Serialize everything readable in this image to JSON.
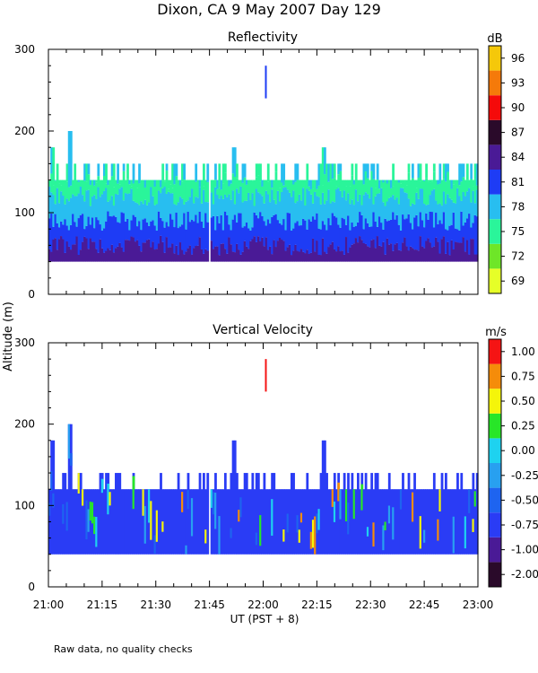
{
  "title": "Dixon, CA  9 May 2007  Day 129",
  "ylabel": "Altitude (m)",
  "xlabel": "UT  (PST + 8)",
  "footnote": "Raw data, no quality checks",
  "x_ticks": [
    "21:00",
    "21:15",
    "21:30",
    "21:45",
    "22:00",
    "22:15",
    "22:30",
    "22:45",
    "23:00"
  ],
  "chart_data": [
    {
      "type": "heatmap",
      "title": "Reflectivity",
      "colorbar_unit": "dB",
      "xlim": [
        "21:00",
        "23:00"
      ],
      "ylim": [
        0,
        300
      ],
      "y_ticks": [
        0,
        100,
        200,
        300
      ],
      "colorbar_levels": [
        {
          "label": "69",
          "color": "#e6ff28"
        },
        {
          "label": "72",
          "color": "#6ee628"
        },
        {
          "label": "75",
          "color": "#2af59a"
        },
        {
          "label": "78",
          "color": "#28bef0"
        },
        {
          "label": "81",
          "color": "#1e3cf5"
        },
        {
          "label": "84",
          "color": "#4a1a96"
        },
        {
          "label": "87",
          "color": "#2a0a2a"
        },
        {
          "label": "90",
          "color": "#f50a0a"
        },
        {
          "label": "93",
          "color": "#f57a0a"
        },
        {
          "label": "96",
          "color": "#f5c80a"
        }
      ],
      "echo_base_m": 40,
      "typical_layers": [
        {
          "top_m": 60,
          "level": "84"
        },
        {
          "top_m": 90,
          "level": "81"
        },
        {
          "top_m": 120,
          "level": "78"
        },
        {
          "top_m": 140,
          "level": "75"
        }
      ],
      "spikes": [
        {
          "time": "21:01",
          "top_m": 180
        },
        {
          "time": "21:06",
          "top_m": 200
        },
        {
          "time": "21:52",
          "top_m": 180
        },
        {
          "time": "22:17",
          "top_m": 180
        }
      ],
      "isolated_echo": {
        "time": "22:00",
        "bottom_m": 240,
        "top_m": 280
      }
    },
    {
      "type": "heatmap",
      "title": "Vertical Velocity",
      "colorbar_unit": "m/s",
      "xlim": [
        "21:00",
        "23:00"
      ],
      "ylim": [
        0,
        300
      ],
      "y_ticks": [
        0,
        100,
        200,
        300
      ],
      "colorbar_levels": [
        {
          "label": "-2.00",
          "color": "#2a0a2a"
        },
        {
          "label": "-1.00",
          "color": "#4a1a96"
        },
        {
          "label": "-0.75",
          "color": "#2a3cf5"
        },
        {
          "label": "-0.50",
          "color": "#1e64f0"
        },
        {
          "label": "-0.25",
          "color": "#28a0f0"
        },
        {
          "label": "0.00",
          "color": "#1ed2f0"
        },
        {
          "label": "0.25",
          "color": "#28e628"
        },
        {
          "label": "0.50",
          "color": "#f5f50a"
        },
        {
          "label": "0.75",
          "color": "#f58c0a"
        },
        {
          "label": "1.00",
          "color": "#f51414"
        }
      ],
      "echo_base_m": 40,
      "typical_top_m": 120,
      "dominant_level": "-0.75",
      "spikes": [
        {
          "time": "21:01",
          "top_m": 180
        },
        {
          "time": "21:06",
          "top_m": 200
        },
        {
          "time": "21:52",
          "top_m": 180
        },
        {
          "time": "22:17",
          "top_m": 180
        }
      ],
      "isolated_echo": {
        "time": "22:00",
        "bottom_m": 240,
        "top_m": 280,
        "level": "1.00"
      }
    }
  ]
}
